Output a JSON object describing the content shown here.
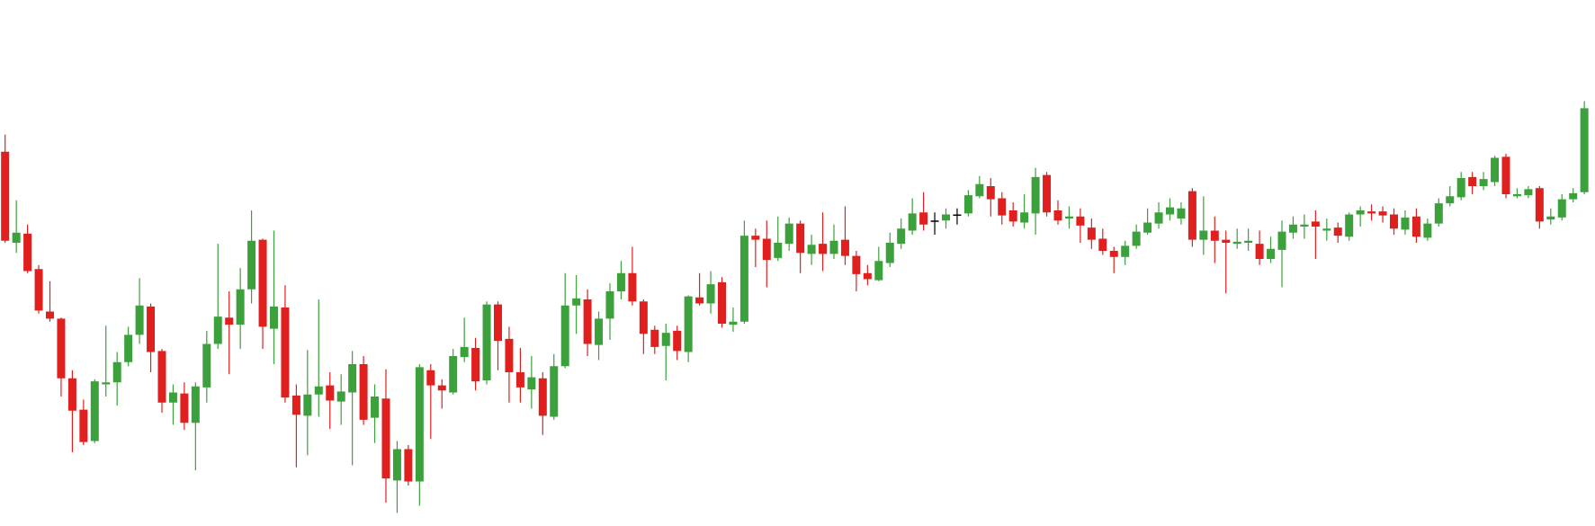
{
  "chart_data": {
    "type": "candlestick",
    "up_color": "#3ca13c",
    "down_color": "#e0201f",
    "neutral_color": "#000000",
    "ylim": [
      0,
      520
    ],
    "open": [
      370,
      280,
      289,
      254,
      212,
      205,
      146,
      115,
      84,
      140,
      142,
      162,
      189,
      217,
      173,
      122,
      131,
      102,
      137,
      180,
      206,
      199,
      234,
      283,
      195,
      216,
      129,
      109,
      130,
      139,
      123,
      132,
      160,
      107,
      126,
      45,
      76,
      44,
      154,
      139,
      132,
      167,
      176,
      144,
      219,
      185,
      152,
      135,
      146,
      108,
      158,
      218,
      224,
      179,
      205,
      232,
      250,
      222,
      194,
      178,
      193,
      172,
      226,
      220,
      241,
      199,
      202,
      287,
      284,
      265,
      279,
      299,
      269,
      279,
      269,
      283,
      267,
      250,
      243,
      260,
      279,
      292,
      310,
      302,
      302,
      308,
      309,
      326,
      336,
      324,
      312,
      300,
      309,
      347,
      312,
      304,
      306,
      295,
      284,
      272,
      266,
      277,
      290,
      299,
      308,
      304,
      331,
      283,
      292,
      283,
      279,
      280,
      279,
      264,
      273,
      290,
      296,
      301,
      292,
      295,
      286,
      308,
      311,
      311,
      308,
      293,
      306,
      285,
      299,
      319,
      325,
      345,
      336,
      340,
      365,
      326,
      327,
      334,
      303,
      305,
      323,
      330
    ],
    "high": [
      387,
      322,
      298,
      258,
      242,
      206,
      154,
      125,
      145,
      198,
      172,
      197,
      245,
      220,
      175,
      140,
      142,
      142,
      193,
      279,
      232,
      255,
      312,
      284,
      292,
      238,
      140,
      174,
      224,
      152,
      150,
      173,
      168,
      140,
      155,
      84,
      80,
      160,
      160,
      145,
      175,
      206,
      186,
      222,
      222,
      197,
      176,
      168,
      152,
      170,
      250,
      248,
      234,
      212,
      240,
      262,
      276,
      224,
      198,
      200,
      198,
      228,
      250,
      252,
      246,
      216,
      302,
      294,
      302,
      306,
      305,
      302,
      288,
      310,
      298,
      316,
      272,
      258,
      276,
      290,
      304,
      324,
      330,
      310,
      314,
      314,
      332,
      346,
      344,
      330,
      320,
      328,
      354,
      350,
      322,
      316,
      314,
      304,
      294,
      276,
      282,
      298,
      314,
      320,
      324,
      320,
      334,
      326,
      306,
      292,
      294,
      294,
      292,
      286,
      302,
      306,
      308,
      312,
      304,
      300,
      310,
      316,
      318,
      316,
      314,
      312,
      314,
      304,
      324,
      336,
      350,
      350,
      350,
      366,
      368,
      334,
      336,
      336,
      314,
      328,
      334,
      420
    ],
    "low": [
      280,
      270,
      250,
      210,
      202,
      128,
      73,
      80,
      82,
      128,
      119,
      158,
      180,
      152,
      112,
      100,
      95,
      55,
      122,
      175,
      150,
      175,
      220,
      175,
      160,
      122,
      58,
      70,
      108,
      96,
      100,
      60,
      100,
      82,
      23,
      13,
      40,
      20,
      86,
      116,
      130,
      162,
      134,
      140,
      154,
      122,
      122,
      116,
      90,
      105,
      156,
      190,
      168,
      164,
      184,
      224,
      218,
      170,
      170,
      144,
      164,
      162,
      218,
      210,
      196,
      192,
      200,
      256,
      236,
      262,
      272,
      250,
      258,
      252,
      264,
      258,
      232,
      238,
      242,
      256,
      274,
      288,
      292,
      288,
      294,
      298,
      306,
      324,
      306,
      298,
      296,
      294,
      288,
      306,
      298,
      294,
      280,
      274,
      268,
      250,
      258,
      274,
      288,
      294,
      302,
      298,
      276,
      268,
      260,
      230,
      274,
      272,
      258,
      260,
      236,
      284,
      284,
      264,
      282,
      280,
      282,
      296,
      302,
      300,
      288,
      288,
      280,
      282,
      296,
      316,
      322,
      328,
      332,
      336,
      324,
      324,
      324,
      294,
      298,
      302,
      320,
      328
    ],
    "close": [
      282,
      290,
      252,
      213,
      205,
      146,
      114,
      83,
      143,
      142,
      162,
      189,
      218,
      172,
      122,
      132,
      102,
      138,
      180,
      207,
      199,
      234,
      282,
      197,
      217,
      127,
      110,
      130,
      138,
      124,
      133,
      160,
      105,
      128,
      47,
      76,
      44,
      157,
      139,
      134,
      168,
      177,
      143,
      219,
      183,
      152,
      137,
      147,
      109,
      158,
      218,
      225,
      180,
      205,
      232,
      250,
      222,
      190,
      177,
      191,
      173,
      227,
      220,
      239,
      200,
      202,
      287,
      283,
      263,
      280,
      299,
      270,
      278,
      269,
      282,
      267,
      249,
      244,
      262,
      280,
      294,
      309,
      298,
      302,
      308,
      308,
      327,
      338,
      323,
      307,
      301,
      310,
      345,
      310,
      302,
      306,
      297,
      283,
      272,
      266,
      277,
      291,
      300,
      310,
      315,
      314,
      283,
      292,
      282,
      280,
      281,
      282,
      264,
      274,
      291,
      298,
      298,
      296,
      294,
      287,
      308,
      312,
      309,
      307,
      294,
      305,
      286,
      299,
      319,
      326,
      344,
      336,
      343,
      364,
      328,
      328,
      333,
      301,
      306,
      323,
      329,
      413
    ]
  }
}
